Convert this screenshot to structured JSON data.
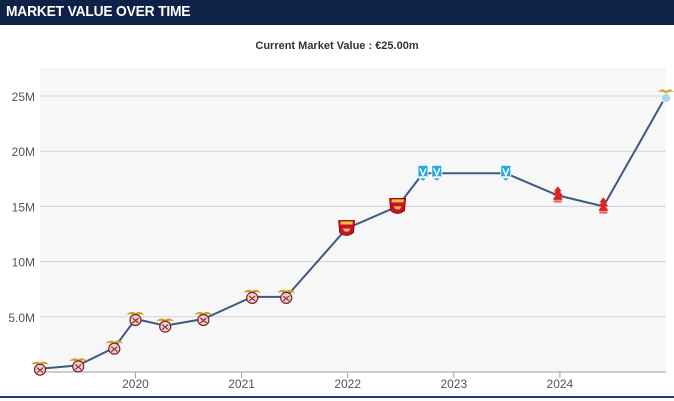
{
  "header": {
    "title": "MARKET VALUE OVER TIME"
  },
  "chart_data": {
    "type": "line",
    "title": "Current Market Value : €25.00m",
    "xlabel": "",
    "ylabel": "",
    "ylim": [
      0,
      27
    ],
    "xlim": [
      2019.1,
      2025.0
    ],
    "y_ticks": [
      5,
      10,
      15,
      20,
      25
    ],
    "y_tick_labels": [
      "5.0M",
      "10M",
      "15M",
      "20M",
      "25M"
    ],
    "x_ticks": [
      2020,
      2021,
      2022,
      2023,
      2024
    ],
    "x_tick_labels": [
      "2020",
      "2021",
      "2022",
      "2023",
      "2024"
    ],
    "grid": true,
    "line_color": "#3d5a80",
    "series": [
      {
        "values_unit": "€M",
        "points": [
          {
            "x": 2019.1,
            "y": 0.3,
            "club": "benfica"
          },
          {
            "x": 2019.46,
            "y": 0.6,
            "club": "benfica"
          },
          {
            "x": 2019.8,
            "y": 2.2,
            "club": "benfica"
          },
          {
            "x": 2020.0,
            "y": 4.8,
            "club": "benfica"
          },
          {
            "x": 2020.28,
            "y": 4.2,
            "club": "benfica"
          },
          {
            "x": 2020.64,
            "y": 4.8,
            "club": "benfica"
          },
          {
            "x": 2021.1,
            "y": 6.8,
            "club": "benfica"
          },
          {
            "x": 2021.42,
            "y": 6.8,
            "club": "benfica"
          },
          {
            "x": 2021.99,
            "y": 13.0,
            "club": "arsenal"
          },
          {
            "x": 2022.47,
            "y": 15.0,
            "club": "arsenal"
          },
          {
            "x": 2022.71,
            "y": 18.0,
            "club": "marseille"
          },
          {
            "x": 2022.84,
            "y": 18.0,
            "club": "marseille"
          },
          {
            "x": 2023.49,
            "y": 18.0,
            "club": "marseille"
          },
          {
            "x": 2023.98,
            "y": 16.0,
            "club": "nottingham-forest"
          },
          {
            "x": 2024.41,
            "y": 15.0,
            "club": "nottingham-forest"
          },
          {
            "x": 2025.0,
            "y": 25.0,
            "club": "lazio"
          }
        ]
      }
    ]
  }
}
